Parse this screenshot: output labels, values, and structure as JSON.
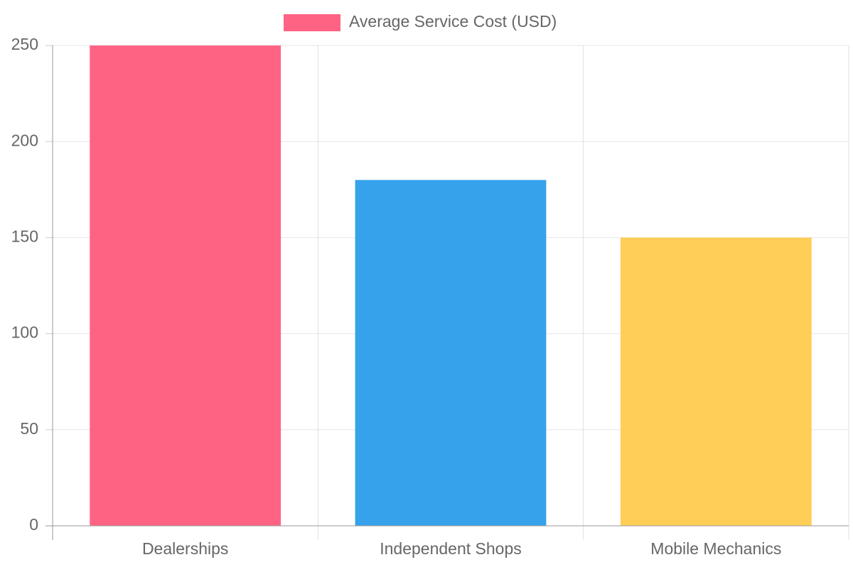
{
  "chart_data": {
    "type": "bar",
    "categories": [
      "Dealerships",
      "Independent Shops",
      "Mobile Mechanics"
    ],
    "series": [
      {
        "name": "Average Service Cost (USD)",
        "values": [
          250,
          180,
          150
        ],
        "colors": [
          "#ff6384",
          "#36a2eb",
          "#ffce56"
        ]
      }
    ],
    "legend_color": "#ff6384",
    "legend_position": "top-center",
    "ylim": [
      0,
      250
    ],
    "yticks": [
      "0",
      "50",
      "100",
      "150",
      "200",
      "250"
    ],
    "grid": true,
    "title": "",
    "xlabel": "",
    "ylabel": ""
  }
}
